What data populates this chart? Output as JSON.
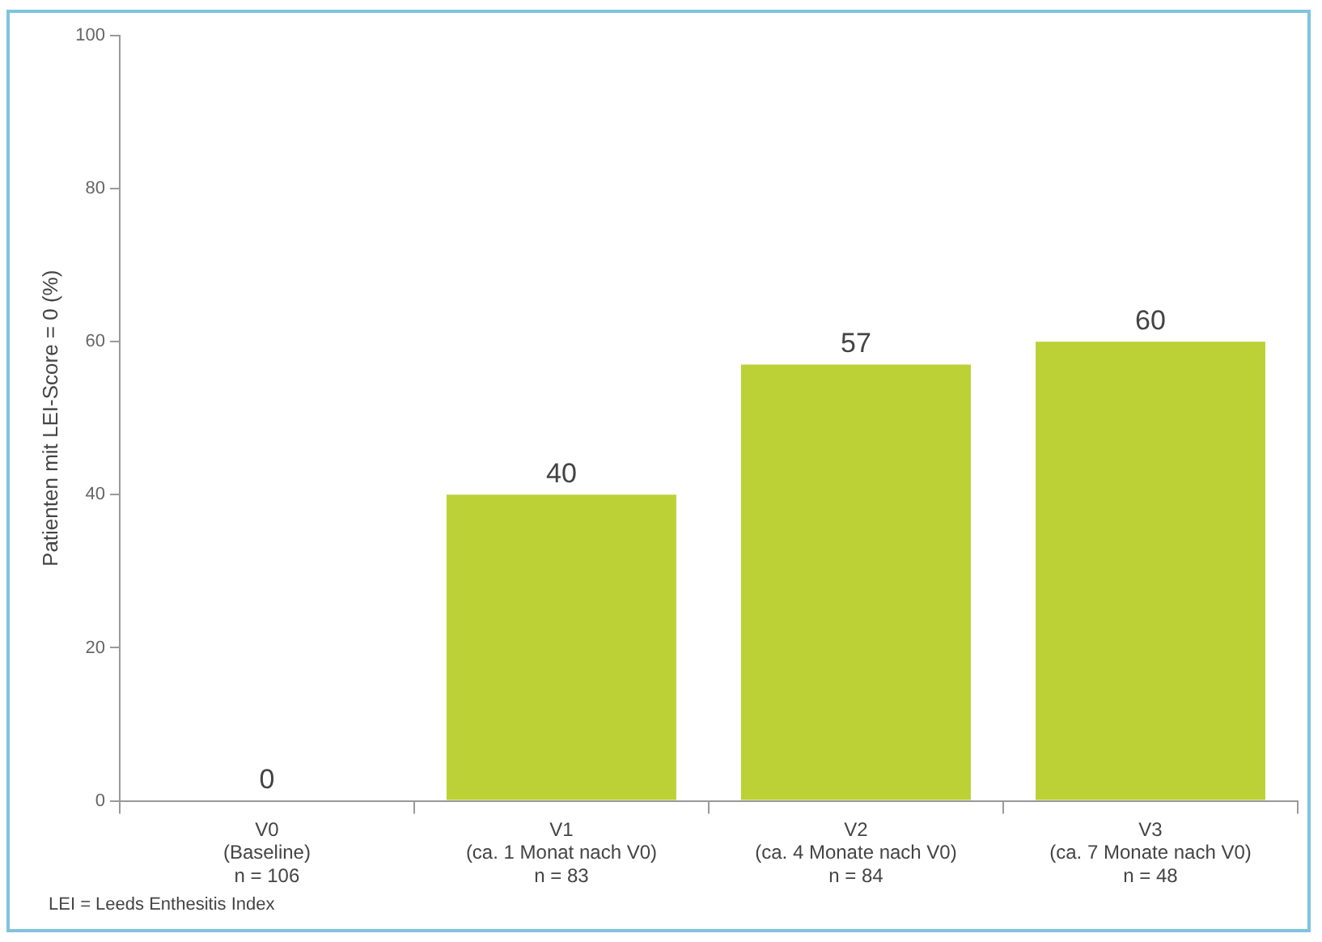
{
  "chart_data": {
    "type": "bar",
    "ylabel": "Patienten mit LEI-Score = 0 (%)",
    "categories": [
      "V0\n(Baseline)\nn = 106",
      "V1\n(ca. 1 Monat nach V0)\nn = 83",
      "V2\n(ca. 4 Monate nach V0)\nn = 84",
      "V3\n(ca. 7 Monate nach V0)\nn = 48"
    ],
    "values": [
      0,
      40,
      57,
      60
    ],
    "color": "#bcd135",
    "ylim": [
      0,
      100
    ],
    "yticks": [
      0,
      20,
      40,
      60,
      80,
      100
    ],
    "grid": false,
    "legend": false,
    "data_labels": true,
    "annotations": [
      "LEI = Leeds Enthesitis Index"
    ]
  }
}
